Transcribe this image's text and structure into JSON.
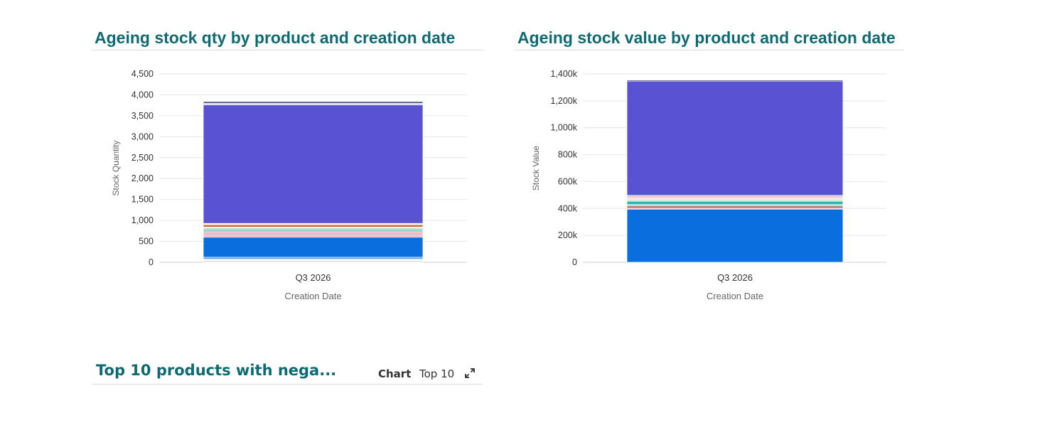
{
  "panels": {
    "qty": {
      "title": "Ageing stock qty by product and creation date",
      "ylabel": "Stock Quantity",
      "xlabel": "Creation Date",
      "category": "Q3 2026"
    },
    "value": {
      "title": "Ageing stock value by product and creation date",
      "ylabel": "Stock Value",
      "xlabel": "Creation Date",
      "category": "Q3 2026"
    }
  },
  "bottom": {
    "title": "Top 10 products with nega...",
    "chart_label": "Chart",
    "top_label": "Top 10",
    "expand_icon": "expand-icon"
  },
  "chart_data": [
    {
      "type": "bar",
      "stacked": true,
      "title": "Ageing stock qty by product and creation date",
      "xlabel": "Creation Date",
      "ylabel": "Stock Quantity",
      "categories": [
        "Q3 2026"
      ],
      "ylim": [
        0,
        4500
      ],
      "yticks": [
        0,
        500,
        1000,
        1500,
        2000,
        2500,
        3000,
        3500,
        4000,
        4500
      ],
      "ytick_labels": [
        "0",
        "500",
        "1,000",
        "1,500",
        "2,000",
        "2,500",
        "3,000",
        "3,500",
        "4,000",
        "4,500"
      ],
      "grid": true,
      "series": [
        {
          "values": [
            20
          ],
          "color": "#9fd0f5"
        },
        {
          "values": [
            20
          ],
          "color": "#7fb9ea"
        },
        {
          "values": [
            20
          ],
          "color": "#bde0f7"
        },
        {
          "values": [
            20
          ],
          "color": "#5aa3e6"
        },
        {
          "values": [
            40
          ],
          "color": "#3b8fe0"
        },
        {
          "values": [
            480
          ],
          "color": "#0a6ede"
        },
        {
          "values": [
            50
          ],
          "color": "#f2a9b6"
        },
        {
          "values": [
            50
          ],
          "color": "#d9a3c4"
        },
        {
          "values": [
            50
          ],
          "color": "#e6a7a7"
        },
        {
          "values": [
            35
          ],
          "color": "#2fb4b4"
        },
        {
          "values": [
            35
          ],
          "color": "#9ed9b4"
        },
        {
          "values": [
            25
          ],
          "color": "#e8e0d0"
        },
        {
          "values": [
            50
          ],
          "color": "#c0561a"
        },
        {
          "values": [
            35
          ],
          "color": "#f4d3b8"
        },
        {
          "values": [
            2830
          ],
          "color": "#5953d4"
        },
        {
          "values": [
            40
          ],
          "color": "#c9c9f0"
        },
        {
          "values": [
            40
          ],
          "color": "#2d2f6b"
        },
        {
          "values": [
            20
          ],
          "color": "#e6e6f2"
        }
      ]
    },
    {
      "type": "bar",
      "stacked": true,
      "title": "Ageing stock value by product and creation date",
      "xlabel": "Creation Date",
      "ylabel": "Stock Value",
      "categories": [
        "Q3 2026"
      ],
      "ylim": [
        0,
        1400000
      ],
      "yticks": [
        0,
        200000,
        400000,
        600000,
        800000,
        1000000,
        1200000,
        1400000
      ],
      "ytick_labels": [
        "0",
        "200k",
        "400k",
        "600k",
        "800k",
        "1,000k",
        "1,200k",
        "1,400k"
      ],
      "grid": true,
      "series": [
        {
          "values": [
            395000
          ],
          "color": "#0a6ede"
        },
        {
          "values": [
            10000
          ],
          "color": "#f2a9b6"
        },
        {
          "values": [
            12000
          ],
          "color": "#8e2a2a"
        },
        {
          "values": [
            12000
          ],
          "color": "#9ed9b4"
        },
        {
          "values": [
            25000
          ],
          "color": "#2fb4b4"
        },
        {
          "values": [
            15000
          ],
          "color": "#cfe9d9"
        },
        {
          "values": [
            10000
          ],
          "color": "#f4d3b8"
        },
        {
          "values": [
            18000
          ],
          "color": "#e6c3c9"
        },
        {
          "values": [
            850000
          ],
          "color": "#5953d4"
        },
        {
          "values": [
            8000
          ],
          "color": "#2d2f6b"
        },
        {
          "values": [
            5000
          ],
          "color": "#e0e0e0"
        }
      ]
    }
  ]
}
